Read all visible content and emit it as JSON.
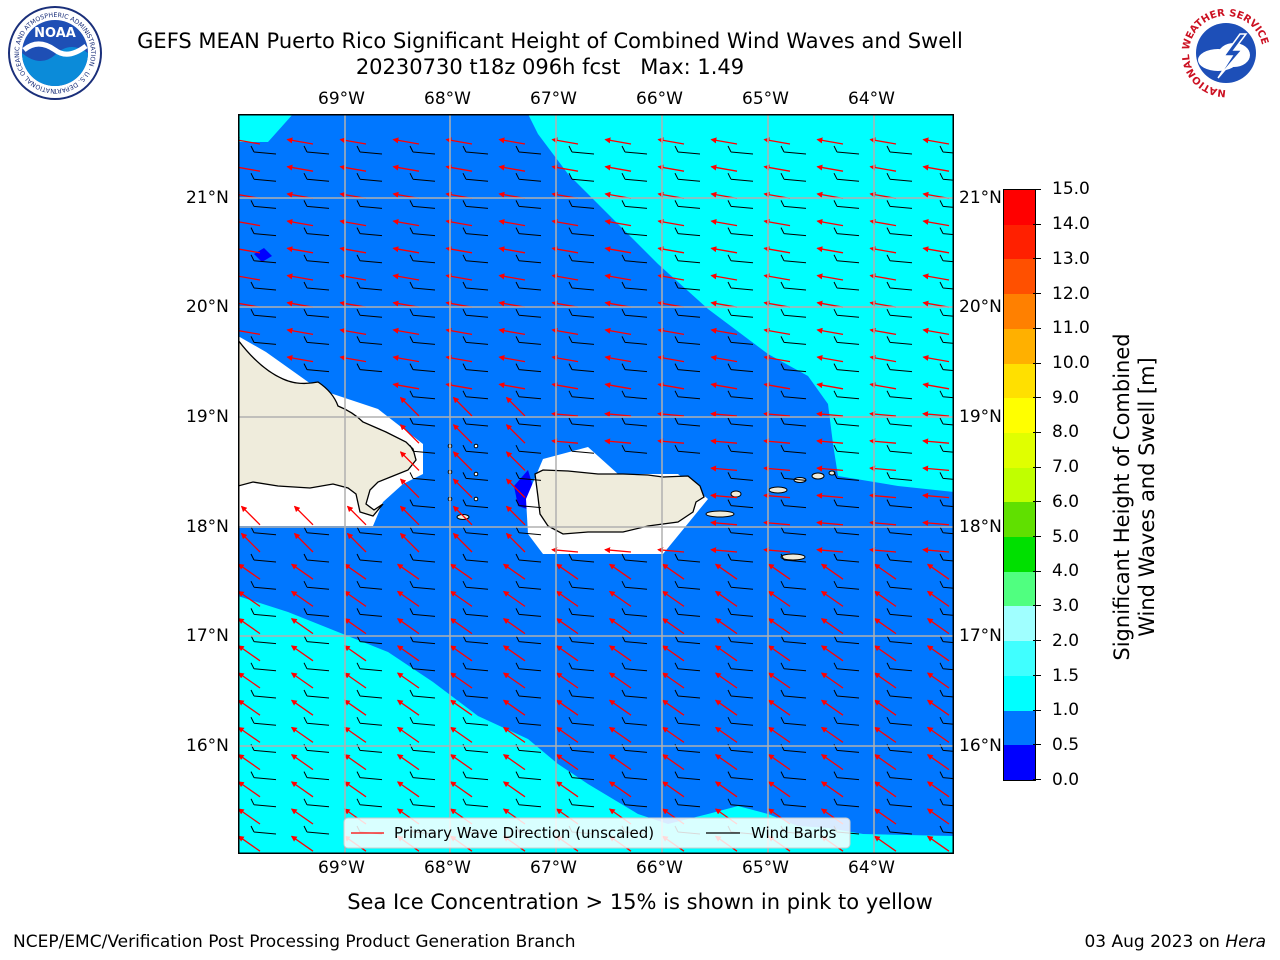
{
  "title": {
    "line1": "GEFS MEAN Puerto Rico Significant Height of Combined Wind Waves and Swell",
    "line2": "20230730 t18z 096h fcst   Max: 1.49"
  },
  "logos": {
    "noaa": {
      "center_text": "NOAA",
      "ring_text": "NATIONAL OCEANIC AND ATMOSPHERIC ADMINISTRATION · U.S. DEPARTMENT OF COMMERCE"
    },
    "nws": {
      "ring_text": "NATIONAL WEATHER SERVICE"
    }
  },
  "map": {
    "lon_labels": [
      "69°W",
      "68°W",
      "67°W",
      "66°W",
      "65°W",
      "64°W"
    ],
    "lat_labels": [
      "21°N",
      "20°N",
      "19°N",
      "18°N",
      "17°N",
      "16°N"
    ],
    "legend": {
      "wave_label": "Primary Wave Direction (unscaled)",
      "wind_label": "Wind Barbs"
    }
  },
  "colorbar": {
    "label_line1": "Significant Height of Combined",
    "label_line2": "Wind Waves and Swell [m]",
    "ticks": [
      "15.0",
      "14.0",
      "13.0",
      "12.0",
      "11.0",
      "10.0",
      "9.0",
      "8.0",
      "7.0",
      "6.0",
      "5.0",
      "4.0",
      "3.0",
      "2.0",
      "1.5",
      "1.0",
      "0.5",
      "0.0"
    ],
    "colors": [
      "#0000ff",
      "#0077ff",
      "#00ffff",
      "#40ffff",
      "#a0ffff",
      "#50ff80",
      "#00e000",
      "#60e000",
      "#c0ff00",
      "#e0ff00",
      "#ffff00",
      "#ffe000",
      "#ffb000",
      "#ff8000",
      "#ff5000",
      "#ff2000",
      "#ff0000"
    ]
  },
  "sea_ice_note": "Sea Ice Concentration > 15% is shown in pink to yellow",
  "footer": {
    "left": "NCEP/EMC/Verification Post Processing Product Generation Branch",
    "date": "03 Aug 2023 on ",
    "machine": "Hera"
  }
}
